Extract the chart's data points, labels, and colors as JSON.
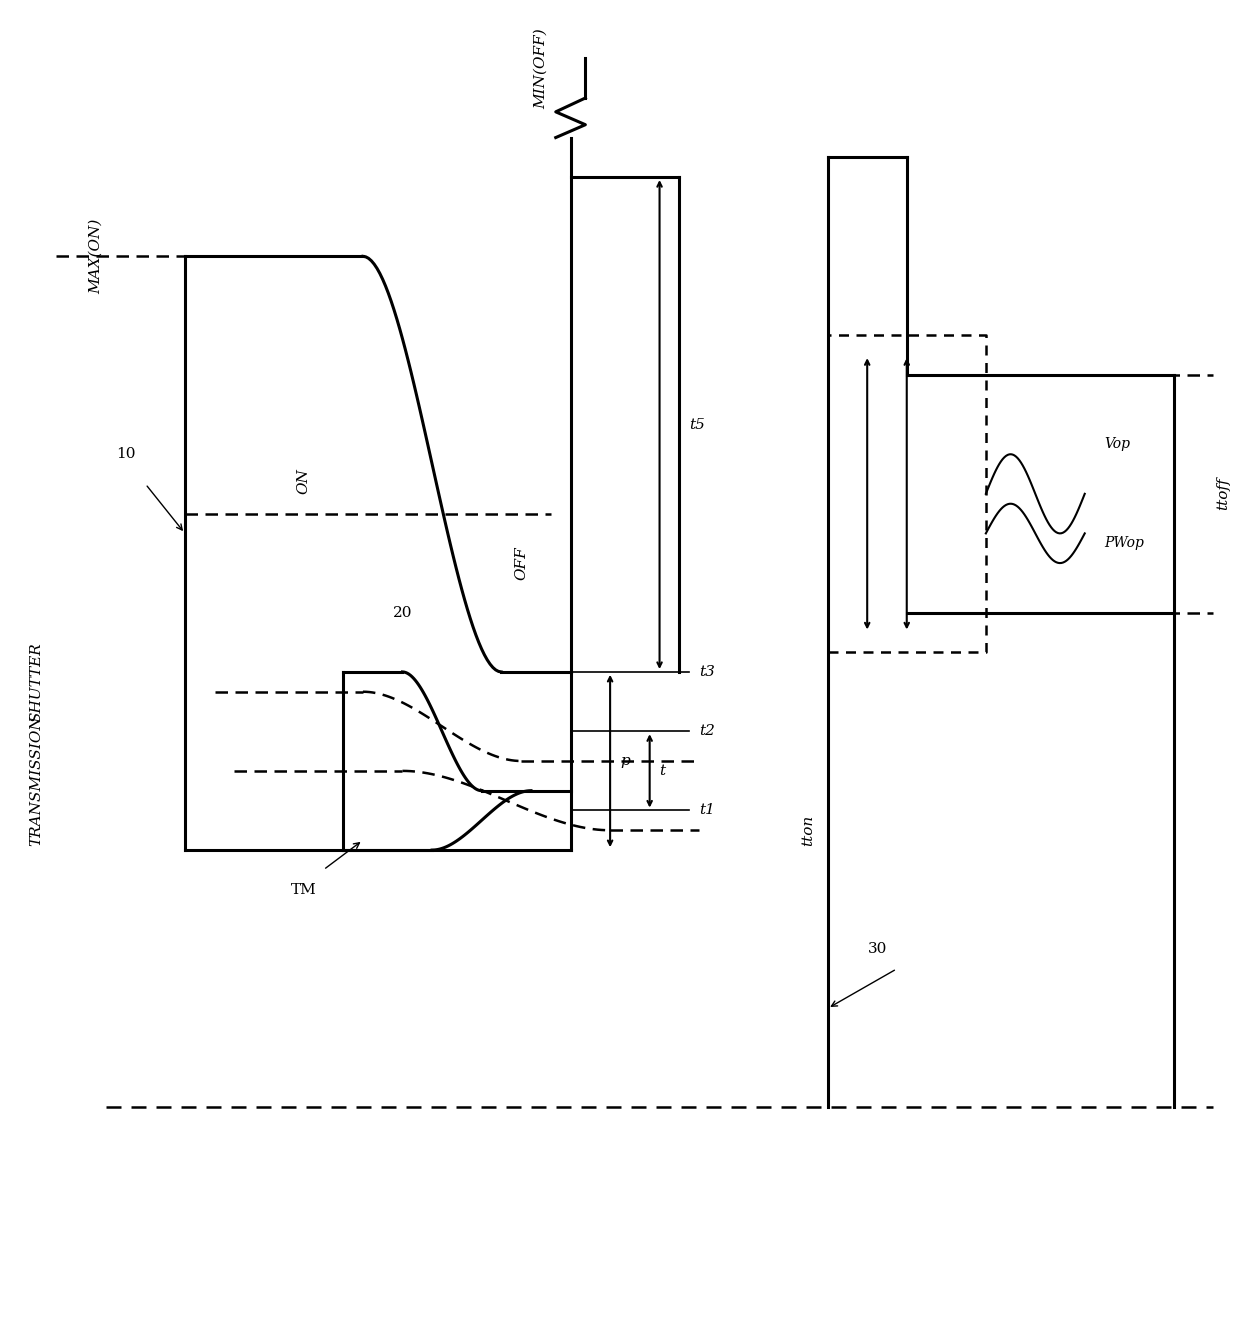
{
  "bg_color": "#ffffff",
  "lc": "#000000",
  "fig_width": 12.4,
  "fig_height": 13.32,
  "dpi": 100,
  "labels": {
    "MAX_ON": "MAX(ON)",
    "MIN_OFF": "MIN(OFF)",
    "ON": "ON",
    "OFF": "OFF",
    "label_10": "10",
    "label_20": "20",
    "label_30": "30",
    "SHUTTER": "SHUTTER",
    "TRANSMISSION": "TRANSMISSION",
    "TM": "TM",
    "t1": "t1",
    "t2": "t2",
    "t3": "t3",
    "t5": "t5",
    "t": "t",
    "p": "p",
    "Vop": "Vop",
    "PWop": "PWop",
    "tton": "tton",
    "ttoff": "ttoff"
  }
}
